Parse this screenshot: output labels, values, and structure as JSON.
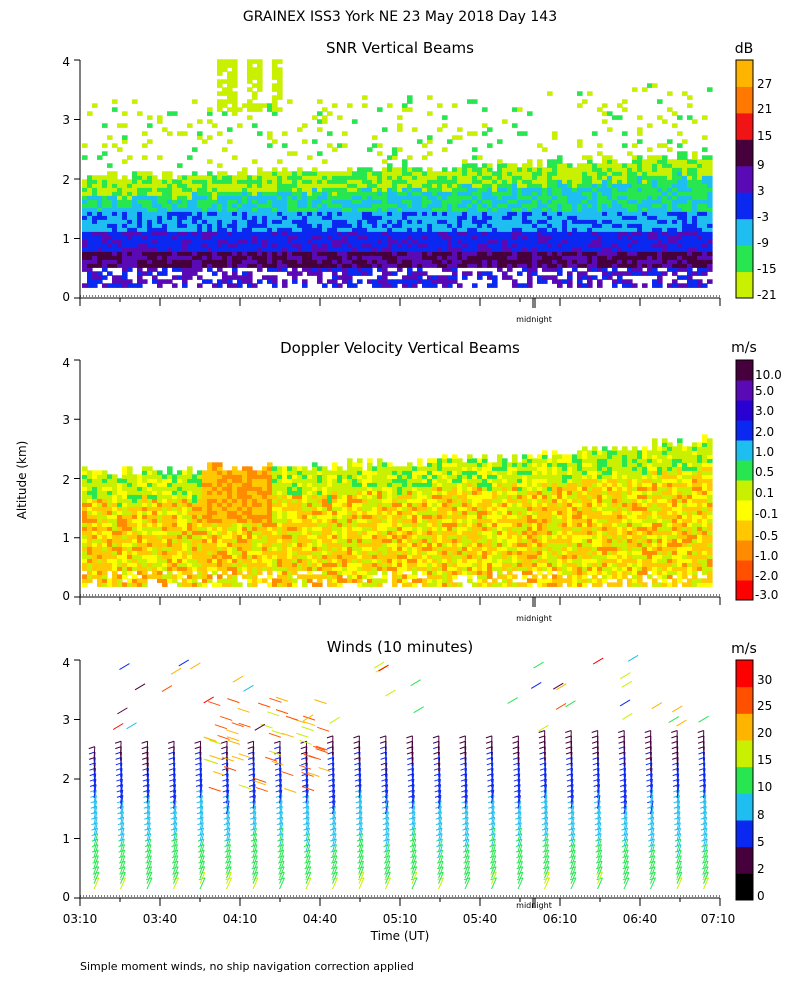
{
  "header": {
    "title": "GRAINEX ISS3 York NE  23 May 2018 Day 143"
  },
  "footer": {
    "note": "Simple moment winds, no ship navigation correction applied"
  },
  "colors": {
    "snr_scale": [
      "#c8f000",
      "#28e650",
      "#1ebef0",
      "#0a28f0",
      "#5a0ab4",
      "#46003c",
      "#f01414",
      "#ff7800",
      "#ffb400"
    ],
    "vel_scale": [
      "#ff0000",
      "#ff5000",
      "#ff8c00",
      "#ffc800",
      "#ffff00",
      "#c8f000",
      "#28e650",
      "#1ebef0",
      "#0a28f0",
      "#2800d2",
      "#5a0ab4",
      "#46003c"
    ],
    "wind_scale": [
      "#000000",
      "#46003c",
      "#0a28f0",
      "#1ebef0",
      "#28e650",
      "#c8f000",
      "#ffb400",
      "#ff5000",
      "#ff0000"
    ]
  },
  "chart_data": [
    {
      "type": "heatmap",
      "title": "SNR Vertical Beams",
      "ylabel": "",
      "xlabel": "",
      "units": "dB",
      "x_range_utc": [
        "03:10",
        "07:10"
      ],
      "ylim": [
        0,
        4
      ],
      "yticks": [
        "0",
        "1",
        "2",
        "3",
        "4"
      ],
      "colorbar_labels": [
        "-21",
        "-15",
        "-9",
        "-3",
        "3",
        "9",
        "15",
        "21",
        "27"
      ],
      "annotation": "midnight",
      "profile": [
        {
          "alt_km": 0.2,
          "snr_db": 2
        },
        {
          "alt_km": 0.6,
          "snr_db": 6
        },
        {
          "alt_km": 1.0,
          "snr_db": -2
        },
        {
          "alt_km": 1.4,
          "snr_db": -8
        },
        {
          "alt_km": 1.8,
          "snr_db": -14
        },
        {
          "alt_km": 2.2,
          "snr_db": -18
        },
        {
          "alt_km": 3.0,
          "snr_db": -21
        }
      ]
    },
    {
      "type": "heatmap",
      "title": "Doppler Velocity Vertical Beams",
      "ylabel": "Altitude (km)",
      "xlabel": "",
      "units": "m/s",
      "x_range_utc": [
        "03:10",
        "07:10"
      ],
      "ylim": [
        0,
        4
      ],
      "yticks": [
        "0",
        "1",
        "2",
        "3",
        "4"
      ],
      "colorbar_labels": [
        "-3.0",
        "-2.0",
        "-1.0",
        "-0.5",
        "-0.1",
        "0.1",
        "0.5",
        "1.0",
        "2.0",
        "3.0",
        "5.0",
        "10.0"
      ],
      "annotation": "midnight",
      "top_of_data_km": {
        "start": 2.1,
        "end": 2.7
      }
    },
    {
      "type": "scatter",
      "title": "Winds (10 minutes)",
      "xlabel": "Time (UT)",
      "ylabel": "",
      "units": "m/s",
      "x_range_utc": [
        "03:10",
        "07:10"
      ],
      "xticks": [
        "03:10",
        "03:40",
        "04:10",
        "04:40",
        "05:10",
        "05:40",
        "06:10",
        "06:40",
        "07:10"
      ],
      "ylim": [
        0,
        4
      ],
      "yticks": [
        "0",
        "1",
        "2",
        "3",
        "4"
      ],
      "colorbar_labels": [
        "0",
        "2",
        "5",
        "8",
        "10",
        "15",
        "20",
        "25",
        "30"
      ],
      "annotation": "midnight",
      "profiles": [
        {
          "time": "03:20",
          "speeds_ms": [
            18,
            15,
            12,
            9,
            6
          ]
        },
        {
          "time": "04:20",
          "speeds_ms": [
            18,
            16,
            22,
            26,
            28
          ]
        },
        {
          "time": "05:20",
          "speeds_ms": [
            18,
            15,
            12,
            10,
            7
          ]
        },
        {
          "time": "06:30",
          "speeds_ms": [
            19,
            16,
            13,
            10,
            9
          ]
        },
        {
          "time": "07:00",
          "speeds_ms": [
            20,
            17,
            14,
            12,
            10
          ]
        }
      ]
    }
  ]
}
